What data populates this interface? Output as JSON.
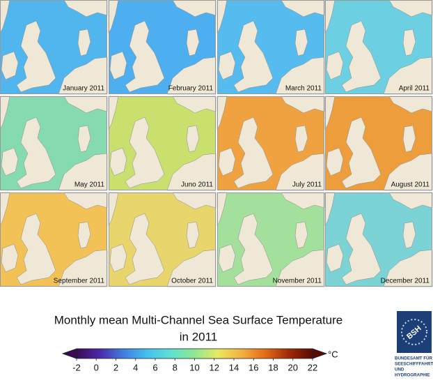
{
  "figure": {
    "panels": [
      {
        "label": "January 2011",
        "color": "#52b6ee"
      },
      {
        "label": "February 2011",
        "color": "#4daff0"
      },
      {
        "label": "March 2011",
        "color": "#56bbee"
      },
      {
        "label": "April 2011",
        "color": "#6ccfe2"
      },
      {
        "label": "May 2011",
        "color": "#86dab0"
      },
      {
        "label": "Juno 2011",
        "color": "#c9e06e"
      },
      {
        "label": "July 2011",
        "color": "#f0a241"
      },
      {
        "label": "August 2011",
        "color": "#ee9d3c"
      },
      {
        "label": "September 2011",
        "color": "#f2c257"
      },
      {
        "label": "October 2011",
        "color": "#e8d56c"
      },
      {
        "label": "November 2011",
        "color": "#a2e09c"
      },
      {
        "label": "December 2011",
        "color": "#7bd3d6"
      }
    ],
    "title": [
      "Monthly mean Multi-Channel Sea Surface Temperature",
      "in 2011"
    ],
    "colorbar": {
      "range": [
        -2,
        22
      ],
      "ticks": [
        -2,
        0,
        2,
        4,
        6,
        8,
        10,
        12,
        14,
        16,
        18,
        20,
        22
      ],
      "unit": "°C",
      "colormap": [
        "#3a0a55",
        "#4b2aa8",
        "#3f7fe0",
        "#45c0f0",
        "#5fe0d0",
        "#8ee890",
        "#e8e860",
        "#f3b040",
        "#e26a18",
        "#a02a08",
        "#5a0a04"
      ]
    },
    "logo": {
      "mark": "BSH",
      "lines": [
        "BUNDESAMT FÜR",
        "SEESCHIFFFAHRT",
        "UND",
        "HYDROGRAPHIE"
      ]
    }
  }
}
